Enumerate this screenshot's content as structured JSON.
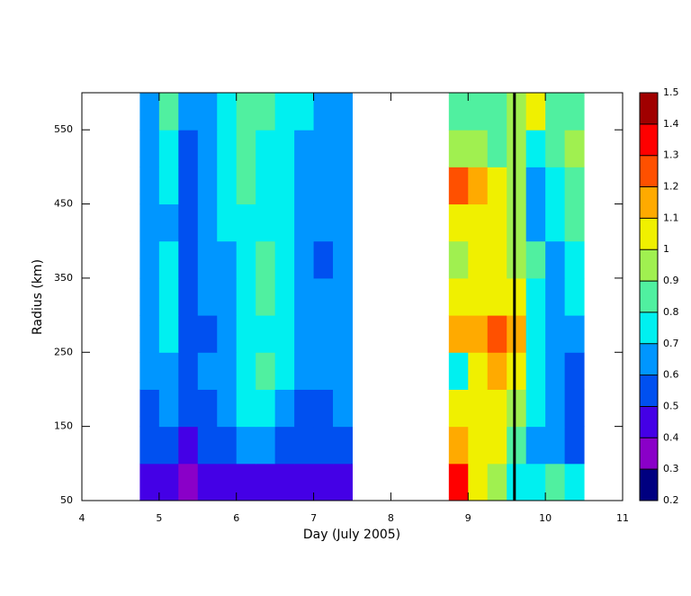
{
  "chart_data": {
    "type": "contour",
    "xlabel": "Day (July 2005)",
    "ylabel": "Radius (km)",
    "xlim": [
      4,
      11
    ],
    "ylim": [
      50,
      600
    ],
    "xticks": [
      4,
      5,
      6,
      7,
      8,
      9,
      10,
      11
    ],
    "yticks": [
      50,
      150,
      250,
      350,
      450,
      550
    ],
    "cell_size": [
      0.25,
      50
    ],
    "x": [
      4.875,
      5.125,
      5.375,
      5.625,
      5.875,
      6.125,
      6.375,
      6.625,
      6.875,
      7.125,
      7.375,
      7.625,
      7.875,
      8.125,
      8.375,
      8.625,
      8.875,
      9.125,
      9.375,
      9.625,
      9.875,
      10.125,
      10.375
    ],
    "y": [
      75,
      125,
      175,
      225,
      275,
      325,
      375,
      425,
      475,
      525,
      575
    ],
    "z": [
      [
        0.45,
        0.45,
        0.35,
        0.45,
        0.45,
        0.45,
        0.45,
        0.45,
        0.45,
        0.45,
        0.45,
        null,
        null,
        null,
        null,
        null,
        1.35,
        1.05,
        0.9,
        0.75,
        0.75,
        0.8,
        0.7
      ],
      [
        0.5,
        0.5,
        0.45,
        0.5,
        0.55,
        0.6,
        0.65,
        0.55,
        0.5,
        0.5,
        0.55,
        null,
        null,
        null,
        null,
        null,
        1.15,
        1.0,
        1.0,
        0.85,
        0.65,
        0.65,
        0.55
      ],
      [
        0.55,
        0.6,
        0.5,
        0.55,
        0.65,
        0.7,
        0.7,
        0.65,
        0.55,
        0.55,
        0.6,
        null,
        null,
        null,
        null,
        null,
        1.0,
        1.0,
        1.0,
        0.95,
        0.7,
        0.6,
        0.55
      ],
      [
        0.6,
        0.65,
        0.55,
        0.6,
        0.65,
        0.75,
        0.85,
        0.7,
        0.6,
        0.6,
        0.65,
        null,
        null,
        null,
        null,
        null,
        0.75,
        1.05,
        1.15,
        1.05,
        0.75,
        0.6,
        0.55
      ],
      [
        0.6,
        0.7,
        0.55,
        0.55,
        0.6,
        0.7,
        0.75,
        0.7,
        0.65,
        0.6,
        0.65,
        null,
        null,
        null,
        null,
        null,
        1.1,
        1.15,
        1.25,
        1.1,
        0.75,
        0.6,
        0.65
      ],
      [
        0.65,
        0.7,
        0.5,
        0.6,
        0.6,
        0.75,
        0.85,
        0.75,
        0.65,
        0.6,
        0.65,
        null,
        null,
        null,
        null,
        null,
        1.0,
        1.05,
        1.05,
        1.0,
        0.75,
        0.6,
        0.7
      ],
      [
        0.6,
        0.7,
        0.55,
        0.6,
        0.65,
        0.75,
        0.8,
        0.75,
        0.65,
        0.55,
        0.65,
        null,
        null,
        null,
        null,
        null,
        0.95,
        1.0,
        1.0,
        0.95,
        0.85,
        0.65,
        0.75
      ],
      [
        0.65,
        0.65,
        0.55,
        0.6,
        0.7,
        0.75,
        0.75,
        0.7,
        0.6,
        0.6,
        0.65,
        null,
        null,
        null,
        null,
        null,
        1.0,
        1.0,
        1.0,
        0.95,
        0.65,
        0.7,
        0.8
      ],
      [
        0.65,
        0.7,
        0.5,
        0.65,
        0.75,
        0.8,
        0.75,
        0.7,
        0.65,
        0.6,
        0.65,
        null,
        null,
        null,
        null,
        null,
        1.2,
        1.1,
        1.0,
        0.9,
        0.65,
        0.75,
        0.85
      ],
      [
        0.6,
        0.75,
        0.55,
        0.65,
        0.75,
        0.8,
        0.75,
        0.7,
        0.65,
        0.6,
        0.65,
        null,
        null,
        null,
        null,
        null,
        0.95,
        0.9,
        0.85,
        0.9,
        0.75,
        0.85,
        0.9
      ],
      [
        0.65,
        0.8,
        0.6,
        0.6,
        0.75,
        0.8,
        0.8,
        0.75,
        0.7,
        0.65,
        0.65,
        null,
        null,
        null,
        null,
        null,
        0.85,
        0.85,
        0.8,
        0.95,
        1.05,
        0.85,
        0.85
      ]
    ],
    "levels": [
      0.2,
      0.3,
      0.4,
      0.5,
      0.6,
      0.7,
      0.8,
      0.9,
      1,
      1.1,
      1.2,
      1.3,
      1.4,
      1.5
    ],
    "colors": [
      "#000080",
      "#8a00c8",
      "#4400e6",
      "#0050f0",
      "#0096ff",
      "#00f0f0",
      "#50f0a0",
      "#a0f050",
      "#f0f000",
      "#ffaa00",
      "#ff5000",
      "#ff0000",
      "#a00000"
    ],
    "vline": 9.6
  }
}
